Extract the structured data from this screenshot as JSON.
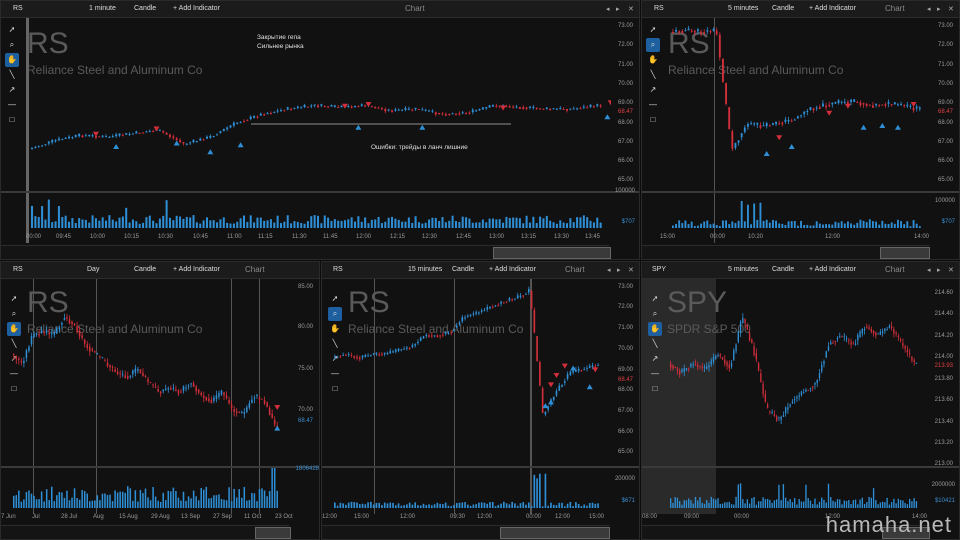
{
  "colors": {
    "up": "#2f8fd6",
    "down": "#d22f3a",
    "bg": "#111111",
    "grid": "#333333"
  },
  "panels": [
    {
      "id": "p1",
      "symbol": "RS",
      "company": "Reliance Steel and Aluminum Co",
      "interval": "1 minute",
      "type": "Candle",
      "add_indicator": "+ Add Indicator",
      "chart_label": "Chart",
      "annotations": {
        "line1": "Закрытие гепа",
        "line2": "Сильнее рынка",
        "line3": "Ошибки: трейды в ланч лишние"
      },
      "y_ticks": [
        "73.00",
        "72.00",
        "71.00",
        "70.00",
        "69.00",
        "68.00",
        "67.00",
        "66.00",
        "65.00"
      ],
      "last_price": "68.47",
      "vol_ticks": [
        "100000",
        "$707"
      ],
      "x_ticks": [
        "00:00",
        "09:45",
        "10:00",
        "10:15",
        "10:30",
        "10:45",
        "11:00",
        "11:15",
        "11:30",
        "11:45",
        "12:00",
        "12:15",
        "12:30",
        "12:45",
        "13:00",
        "13:15",
        "13:30",
        "13:45"
      ]
    },
    {
      "id": "p2",
      "symbol": "RS",
      "company": "Reliance Steel and Aluminum Co",
      "interval": "5 minutes",
      "type": "Candle",
      "add_indicator": "+ Add Indicator",
      "chart_label": "Chart",
      "y_ticks": [
        "73.00",
        "72.00",
        "71.00",
        "70.00",
        "69.00",
        "68.00",
        "67.00",
        "66.00",
        "65.00"
      ],
      "last_price": "68.47",
      "vol_ticks": [
        "100000",
        "$707"
      ],
      "x_ticks": [
        "15:00",
        "00:00",
        "10:20",
        "12:00",
        "14:00"
      ]
    },
    {
      "id": "p3",
      "symbol": "RS",
      "company": "Reliance Steel and Aluminum Co",
      "interval": "Day",
      "type": "Candle",
      "add_indicator": "+ Add Indicator",
      "chart_label": "Chart",
      "y_ticks": [
        "85.00",
        "80.00",
        "75.00",
        "70.00"
      ],
      "last_price": "68.47",
      "vol_ticks": [
        "1806428"
      ],
      "x_ticks": [
        "7 Jun",
        "Jul",
        "28 Jul",
        "Aug",
        "15 Aug",
        "29 Aug",
        "13 Sep",
        "27 Sep",
        "11 Oct",
        "23 Oct"
      ]
    },
    {
      "id": "p4",
      "symbol": "RS",
      "company": "Reliance Steel and Aluminum Co",
      "interval": "15 minutes",
      "type": "Candle",
      "add_indicator": "+ Add Indicator",
      "chart_label": "Chart",
      "y_ticks": [
        "73.00",
        "72.00",
        "71.00",
        "70.00",
        "69.00",
        "68.00",
        "67.00",
        "66.00",
        "65.00"
      ],
      "last_price": "68.47",
      "vol_ticks": [
        "200000",
        "$671"
      ],
      "x_ticks": [
        "12:00",
        "15:00",
        "12:00",
        "09:30",
        "12:00",
        "00:00",
        "12:00",
        "15:00"
      ]
    },
    {
      "id": "p5",
      "symbol": "SPY",
      "company": "SPDR S&P 500",
      "interval": "5 minutes",
      "type": "Candle",
      "add_indicator": "+ Add Indicator",
      "chart_label": "Chart",
      "y_ticks": [
        "214.60",
        "214.40",
        "214.20",
        "214.00",
        "213.80",
        "213.60",
        "213.40",
        "213.20",
        "213.00"
      ],
      "last_price": "213.93",
      "vol_ticks": [
        "2000000",
        "$10421"
      ],
      "x_ticks": [
        "08:00",
        "09:00",
        "00:00",
        "12:00",
        "14:00"
      ]
    }
  ],
  "tools": [
    "pointer-icon",
    "zoom-icon",
    "hand-icon",
    "line-icon",
    "arrow-icon",
    "hline-icon",
    "rect-icon"
  ],
  "watermark": "hamaha.net"
}
